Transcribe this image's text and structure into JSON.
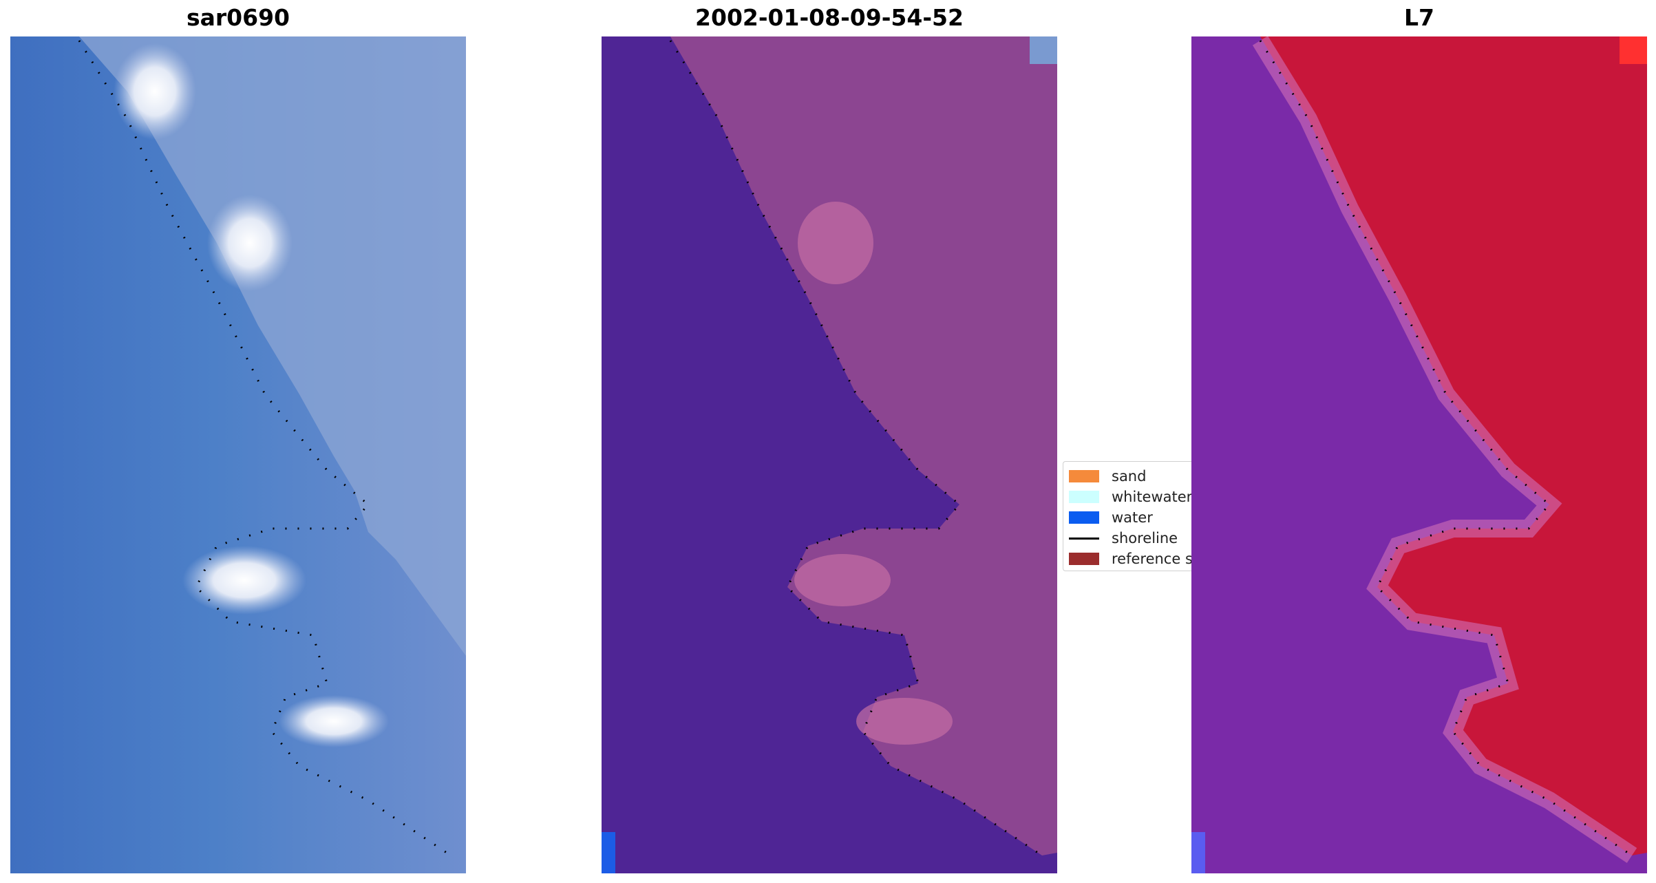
{
  "panels": [
    {
      "title": "sar0690",
      "style": "rgb"
    },
    {
      "title": "2002-01-08-09-54-52",
      "style": "classified"
    },
    {
      "title": "L7",
      "style": "index"
    }
  ],
  "legend": {
    "items": [
      {
        "label": "sand",
        "color": "#f58a3b",
        "kind": "patch"
      },
      {
        "label": "whitewater",
        "color": "#ccffff",
        "kind": "patch"
      },
      {
        "label": "water",
        "color": "#0a5cf0",
        "kind": "patch"
      },
      {
        "label": "shoreline",
        "color": "#000000",
        "kind": "line"
      },
      {
        "label": "reference s",
        "color": "#9b2d2d",
        "kind": "patch"
      }
    ]
  },
  "colors": {
    "rgb_water": "#4a7dc6",
    "rgb_land": "#8ea7d4",
    "classified_water": "#4f2595",
    "classified_land": "#8c4591",
    "index_water": "#7a2aa8",
    "index_land": "#c8163a",
    "shoreline_dots": "#000000"
  }
}
